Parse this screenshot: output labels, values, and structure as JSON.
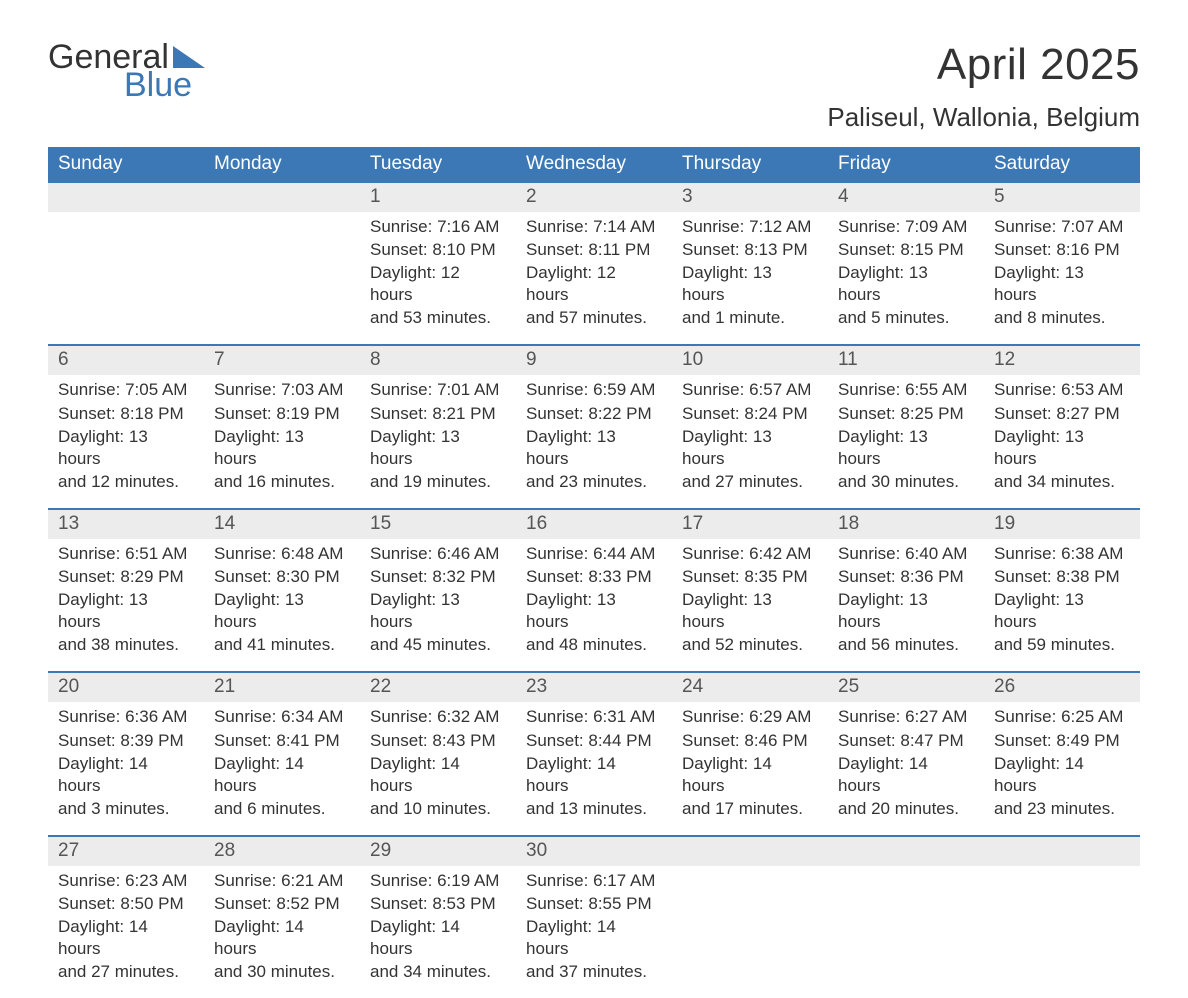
{
  "logo": {
    "word1": "General",
    "word2": "Blue",
    "brand_color": "#3b78b5"
  },
  "title": "April 2025",
  "location": "Paliseul, Wallonia, Belgium",
  "colors": {
    "header_bg": "#3b78b5",
    "header_text": "#ffffff",
    "strip_bg": "#ececec",
    "rule": "#3b78b5",
    "body_text": "#333333",
    "page_bg": "#ffffff"
  },
  "fonts": {
    "title_pt": 44,
    "location_pt": 26,
    "dow_pt": 19,
    "daynum_pt": 19,
    "body_pt": 17
  },
  "days_of_week": [
    "Sunday",
    "Monday",
    "Tuesday",
    "Wednesday",
    "Thursday",
    "Friday",
    "Saturday"
  ],
  "labels": {
    "sunrise": "Sunrise:",
    "sunset": "Sunset:",
    "daylight": "Daylight:"
  },
  "weeks": [
    [
      null,
      null,
      {
        "n": "1",
        "sunrise": "7:16 AM",
        "sunset": "8:10 PM",
        "day_l1": "12 hours",
        "day_l2": "and 53 minutes."
      },
      {
        "n": "2",
        "sunrise": "7:14 AM",
        "sunset": "8:11 PM",
        "day_l1": "12 hours",
        "day_l2": "and 57 minutes."
      },
      {
        "n": "3",
        "sunrise": "7:12 AM",
        "sunset": "8:13 PM",
        "day_l1": "13 hours",
        "day_l2": "and 1 minute."
      },
      {
        "n": "4",
        "sunrise": "7:09 AM",
        "sunset": "8:15 PM",
        "day_l1": "13 hours",
        "day_l2": "and 5 minutes."
      },
      {
        "n": "5",
        "sunrise": "7:07 AM",
        "sunset": "8:16 PM",
        "day_l1": "13 hours",
        "day_l2": "and 8 minutes."
      }
    ],
    [
      {
        "n": "6",
        "sunrise": "7:05 AM",
        "sunset": "8:18 PM",
        "day_l1": "13 hours",
        "day_l2": "and 12 minutes."
      },
      {
        "n": "7",
        "sunrise": "7:03 AM",
        "sunset": "8:19 PM",
        "day_l1": "13 hours",
        "day_l2": "and 16 minutes."
      },
      {
        "n": "8",
        "sunrise": "7:01 AM",
        "sunset": "8:21 PM",
        "day_l1": "13 hours",
        "day_l2": "and 19 minutes."
      },
      {
        "n": "9",
        "sunrise": "6:59 AM",
        "sunset": "8:22 PM",
        "day_l1": "13 hours",
        "day_l2": "and 23 minutes."
      },
      {
        "n": "10",
        "sunrise": "6:57 AM",
        "sunset": "8:24 PM",
        "day_l1": "13 hours",
        "day_l2": "and 27 minutes."
      },
      {
        "n": "11",
        "sunrise": "6:55 AM",
        "sunset": "8:25 PM",
        "day_l1": "13 hours",
        "day_l2": "and 30 minutes."
      },
      {
        "n": "12",
        "sunrise": "6:53 AM",
        "sunset": "8:27 PM",
        "day_l1": "13 hours",
        "day_l2": "and 34 minutes."
      }
    ],
    [
      {
        "n": "13",
        "sunrise": "6:51 AM",
        "sunset": "8:29 PM",
        "day_l1": "13 hours",
        "day_l2": "and 38 minutes."
      },
      {
        "n": "14",
        "sunrise": "6:48 AM",
        "sunset": "8:30 PM",
        "day_l1": "13 hours",
        "day_l2": "and 41 minutes."
      },
      {
        "n": "15",
        "sunrise": "6:46 AM",
        "sunset": "8:32 PM",
        "day_l1": "13 hours",
        "day_l2": "and 45 minutes."
      },
      {
        "n": "16",
        "sunrise": "6:44 AM",
        "sunset": "8:33 PM",
        "day_l1": "13 hours",
        "day_l2": "and 48 minutes."
      },
      {
        "n": "17",
        "sunrise": "6:42 AM",
        "sunset": "8:35 PM",
        "day_l1": "13 hours",
        "day_l2": "and 52 minutes."
      },
      {
        "n": "18",
        "sunrise": "6:40 AM",
        "sunset": "8:36 PM",
        "day_l1": "13 hours",
        "day_l2": "and 56 minutes."
      },
      {
        "n": "19",
        "sunrise": "6:38 AM",
        "sunset": "8:38 PM",
        "day_l1": "13 hours",
        "day_l2": "and 59 minutes."
      }
    ],
    [
      {
        "n": "20",
        "sunrise": "6:36 AM",
        "sunset": "8:39 PM",
        "day_l1": "14 hours",
        "day_l2": "and 3 minutes."
      },
      {
        "n": "21",
        "sunrise": "6:34 AM",
        "sunset": "8:41 PM",
        "day_l1": "14 hours",
        "day_l2": "and 6 minutes."
      },
      {
        "n": "22",
        "sunrise": "6:32 AM",
        "sunset": "8:43 PM",
        "day_l1": "14 hours",
        "day_l2": "and 10 minutes."
      },
      {
        "n": "23",
        "sunrise": "6:31 AM",
        "sunset": "8:44 PM",
        "day_l1": "14 hours",
        "day_l2": "and 13 minutes."
      },
      {
        "n": "24",
        "sunrise": "6:29 AM",
        "sunset": "8:46 PM",
        "day_l1": "14 hours",
        "day_l2": "and 17 minutes."
      },
      {
        "n": "25",
        "sunrise": "6:27 AM",
        "sunset": "8:47 PM",
        "day_l1": "14 hours",
        "day_l2": "and 20 minutes."
      },
      {
        "n": "26",
        "sunrise": "6:25 AM",
        "sunset": "8:49 PM",
        "day_l1": "14 hours",
        "day_l2": "and 23 minutes."
      }
    ],
    [
      {
        "n": "27",
        "sunrise": "6:23 AM",
        "sunset": "8:50 PM",
        "day_l1": "14 hours",
        "day_l2": "and 27 minutes."
      },
      {
        "n": "28",
        "sunrise": "6:21 AM",
        "sunset": "8:52 PM",
        "day_l1": "14 hours",
        "day_l2": "and 30 minutes."
      },
      {
        "n": "29",
        "sunrise": "6:19 AM",
        "sunset": "8:53 PM",
        "day_l1": "14 hours",
        "day_l2": "and 34 minutes."
      },
      {
        "n": "30",
        "sunrise": "6:17 AM",
        "sunset": "8:55 PM",
        "day_l1": "14 hours",
        "day_l2": "and 37 minutes."
      },
      null,
      null,
      null
    ]
  ]
}
